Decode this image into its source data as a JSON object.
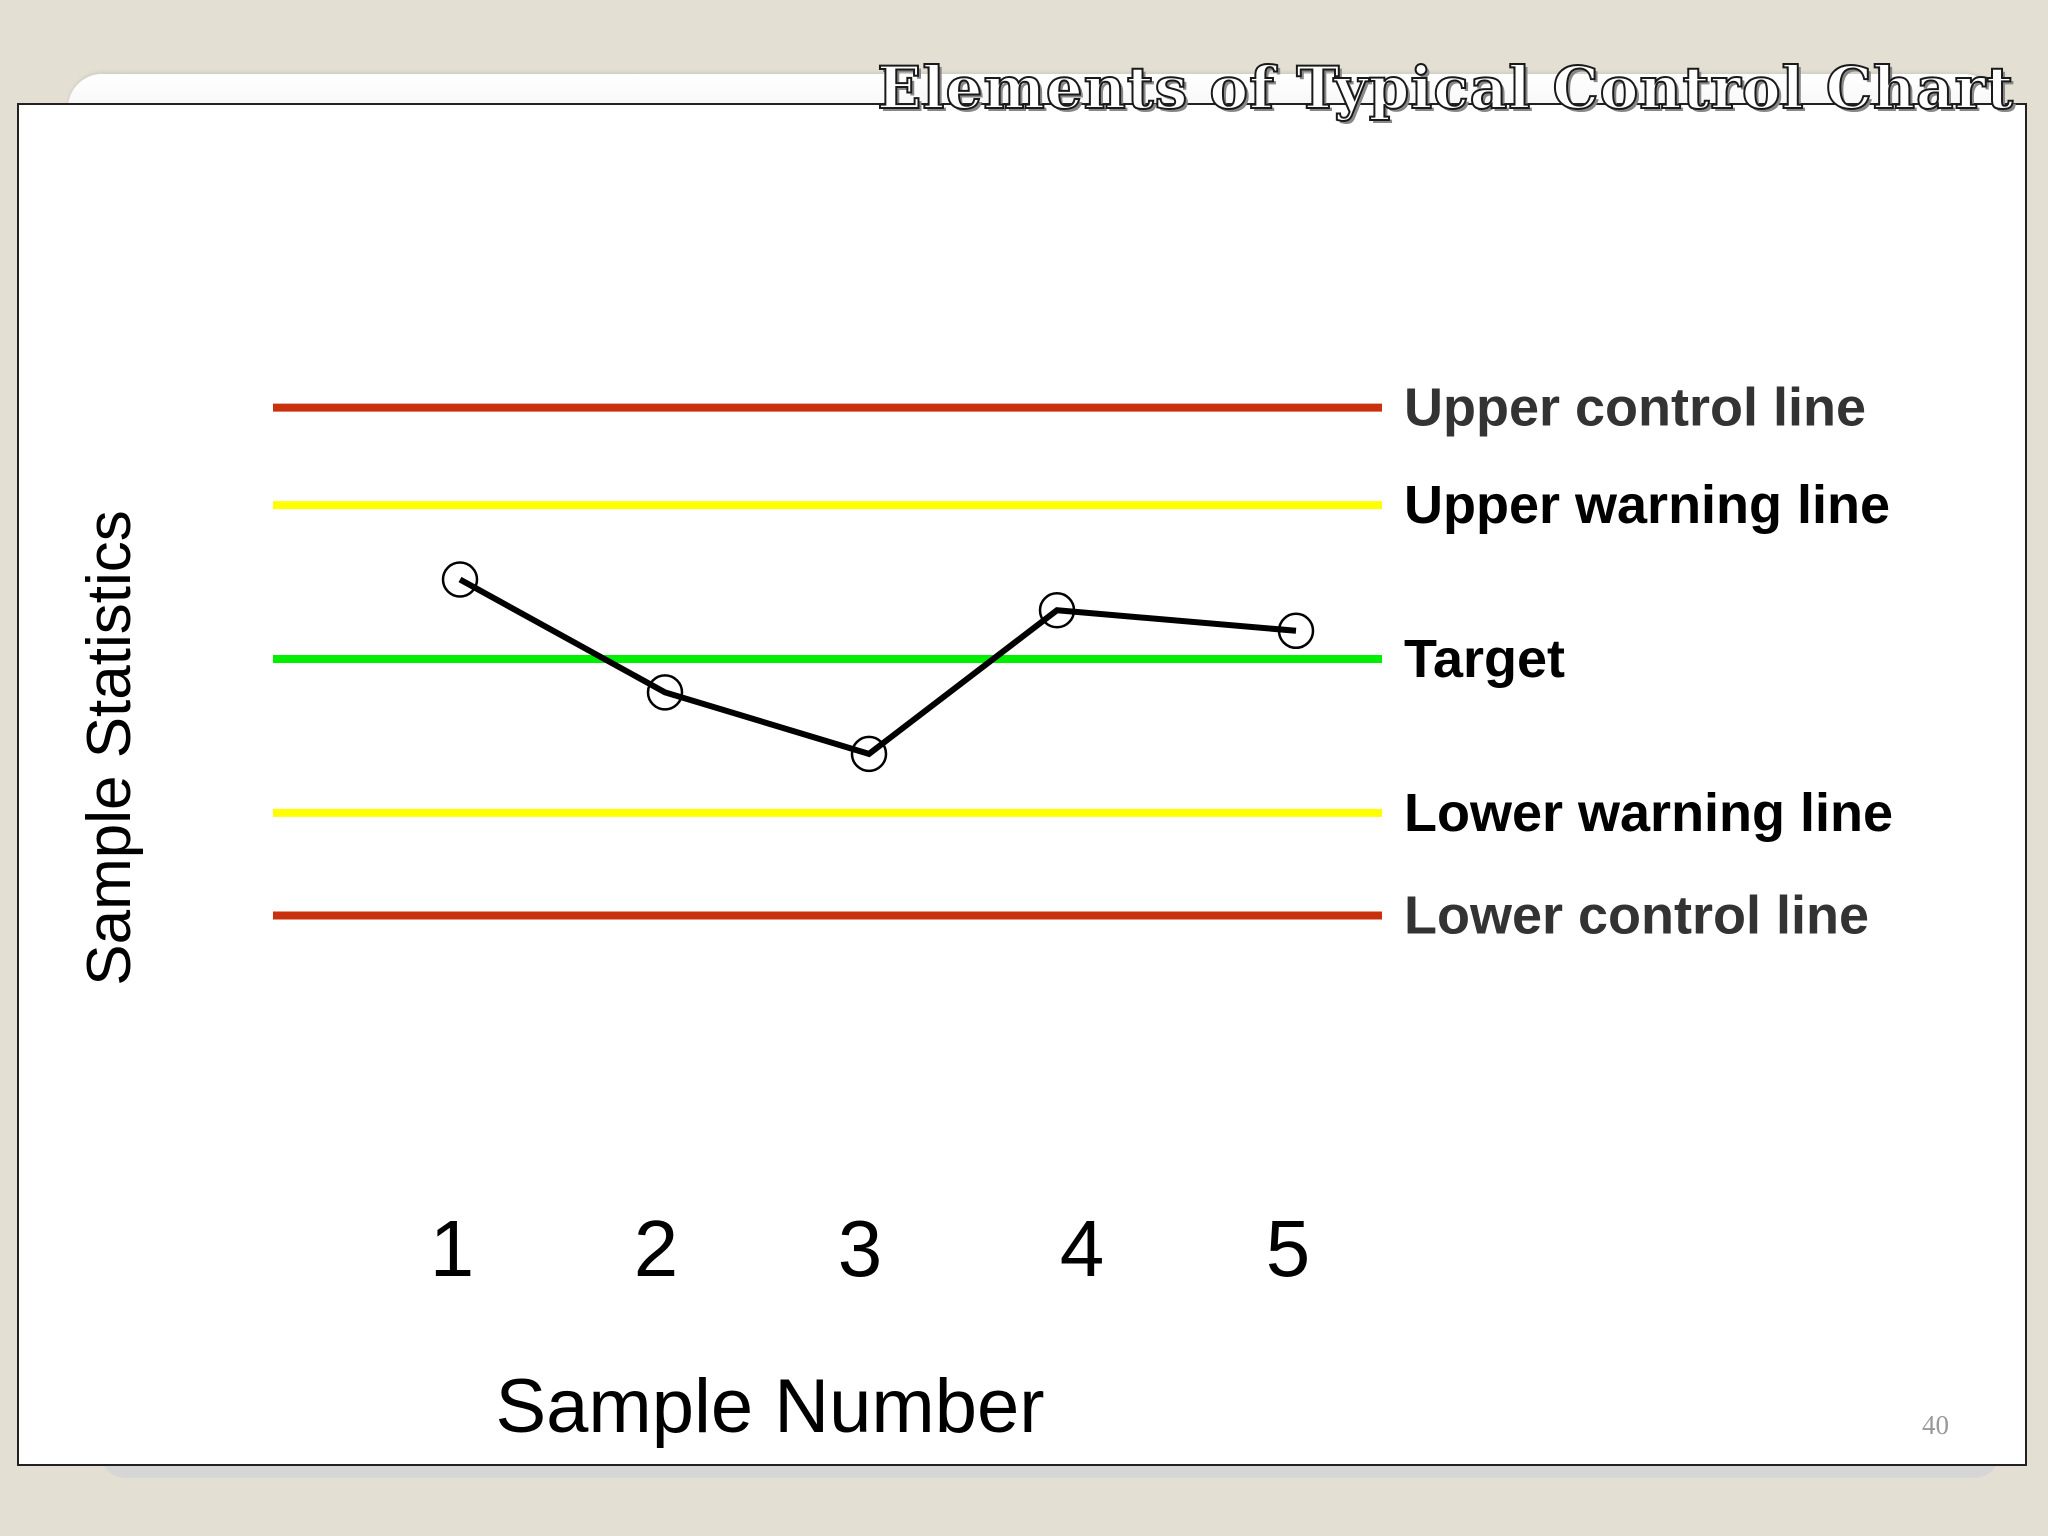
{
  "slide": {
    "title": "Elements of Typical Control Chart",
    "page_number": "40"
  },
  "chart_data": {
    "type": "line",
    "title": "",
    "xlabel": "Sample Number",
    "ylabel": "Sample Statistics",
    "x": [
      1,
      2,
      3,
      4,
      5
    ],
    "x_tick_labels": [
      "1",
      "2",
      "3",
      "4",
      "5"
    ],
    "series": [
      {
        "values": [
          1.55,
          -0.65,
          -1.85,
          0.95,
          0.55
        ]
      }
    ],
    "reference_lines": [
      {
        "label": "Upper control line",
        "value": 4.9,
        "color": "#c8300e",
        "label_color": "#333333"
      },
      {
        "label": "Upper warning line",
        "value": 3.0,
        "color": "#ffff00",
        "label_color": "#000000"
      },
      {
        "label": "Target",
        "value": 0.0,
        "color": "#00ee00",
        "label_color": "#000000"
      },
      {
        "label": "Lower warning line",
        "value": -3.0,
        "color": "#ffff00",
        "label_color": "#000000"
      },
      {
        "label": "Lower control line",
        "value": -5.0,
        "color": "#c8300e",
        "label_color": "#333333"
      }
    ],
    "ylim": [
      -5.0,
      4.9
    ],
    "grid": false,
    "legend": "none",
    "marker": "open-circle",
    "line_color": "#000000"
  }
}
